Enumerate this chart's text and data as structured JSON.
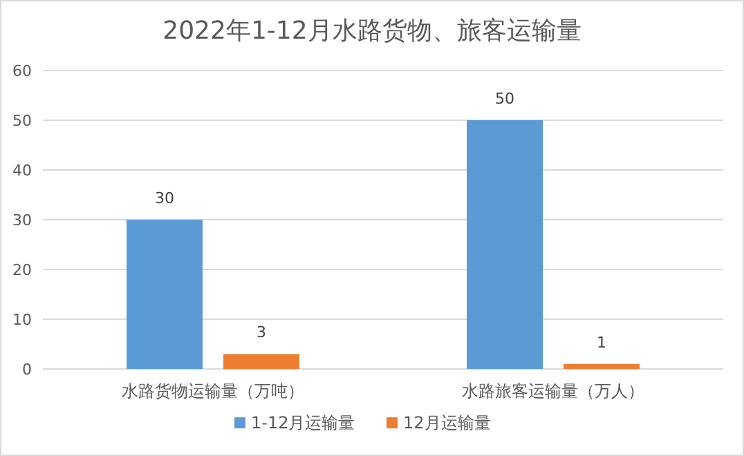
{
  "chart_data": {
    "type": "bar",
    "title": "2022年1-12月水路货物、旅客运输量",
    "categories": [
      "水路货物运输量（万吨）",
      "水路旅客运输量（万人）"
    ],
    "series": [
      {
        "name": "1-12月运输量",
        "color": "#5b9bd5",
        "values": [
          30,
          50
        ]
      },
      {
        "name": "12月运输量",
        "color": "#ed7d31",
        "values": [
          3,
          1
        ]
      }
    ],
    "ylim": [
      0,
      60
    ],
    "yticks": [
      0,
      10,
      20,
      30,
      40,
      50,
      60
    ],
    "grid": "y",
    "legend": "bottom",
    "data_labels": true
  }
}
